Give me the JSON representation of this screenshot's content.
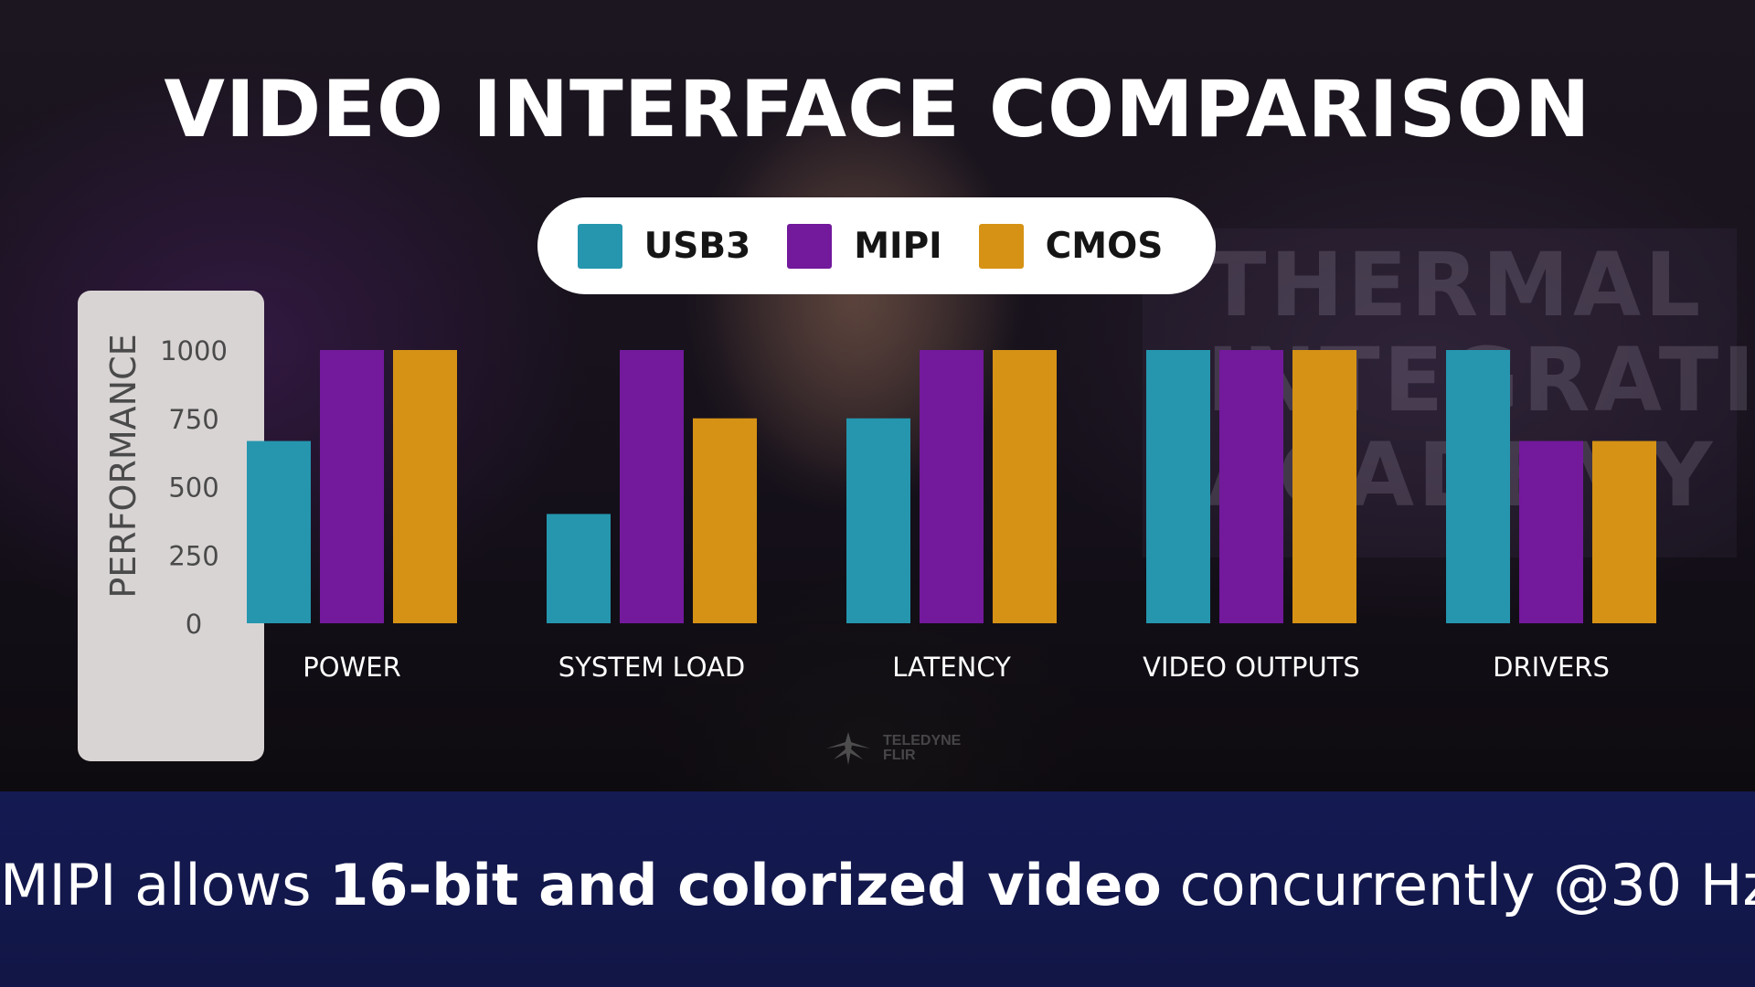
{
  "title": "VIDEO INTERFACE COMPARISON",
  "caption": {
    "prefix": "MIPI allows ",
    "bold": "16-bit and colorized video",
    "suffix": " concurrently @30 Hz"
  },
  "background": {
    "sign_text": "THERMAL\nINTEGRATION\nACADEMY",
    "watermark_text": "TELEDYNE\nFLIR"
  },
  "chart_data": {
    "type": "bar",
    "title": "VIDEO INTERFACE COMPARISON",
    "xlabel": "",
    "ylabel": "PERFORMANCE",
    "ylim": [
      0,
      1000
    ],
    "yticks": [
      0,
      250,
      500,
      750,
      1000
    ],
    "grid": false,
    "legend_position": "top-center",
    "categories": [
      "POWER",
      "SYSTEM LOAD",
      "LATENCY",
      "VIDEO OUTPUTS",
      "DRIVERS"
    ],
    "series": [
      {
        "name": "USB3",
        "color": "#2596ae",
        "values": [
          667,
          400,
          750,
          1000,
          1000
        ]
      },
      {
        "name": "MIPI",
        "color": "#72199c",
        "values": [
          1000,
          1000,
          1000,
          1000,
          667
        ]
      },
      {
        "name": "CMOS",
        "color": "#d69215",
        "values": [
          1000,
          750,
          1000,
          1000,
          667
        ]
      }
    ]
  }
}
